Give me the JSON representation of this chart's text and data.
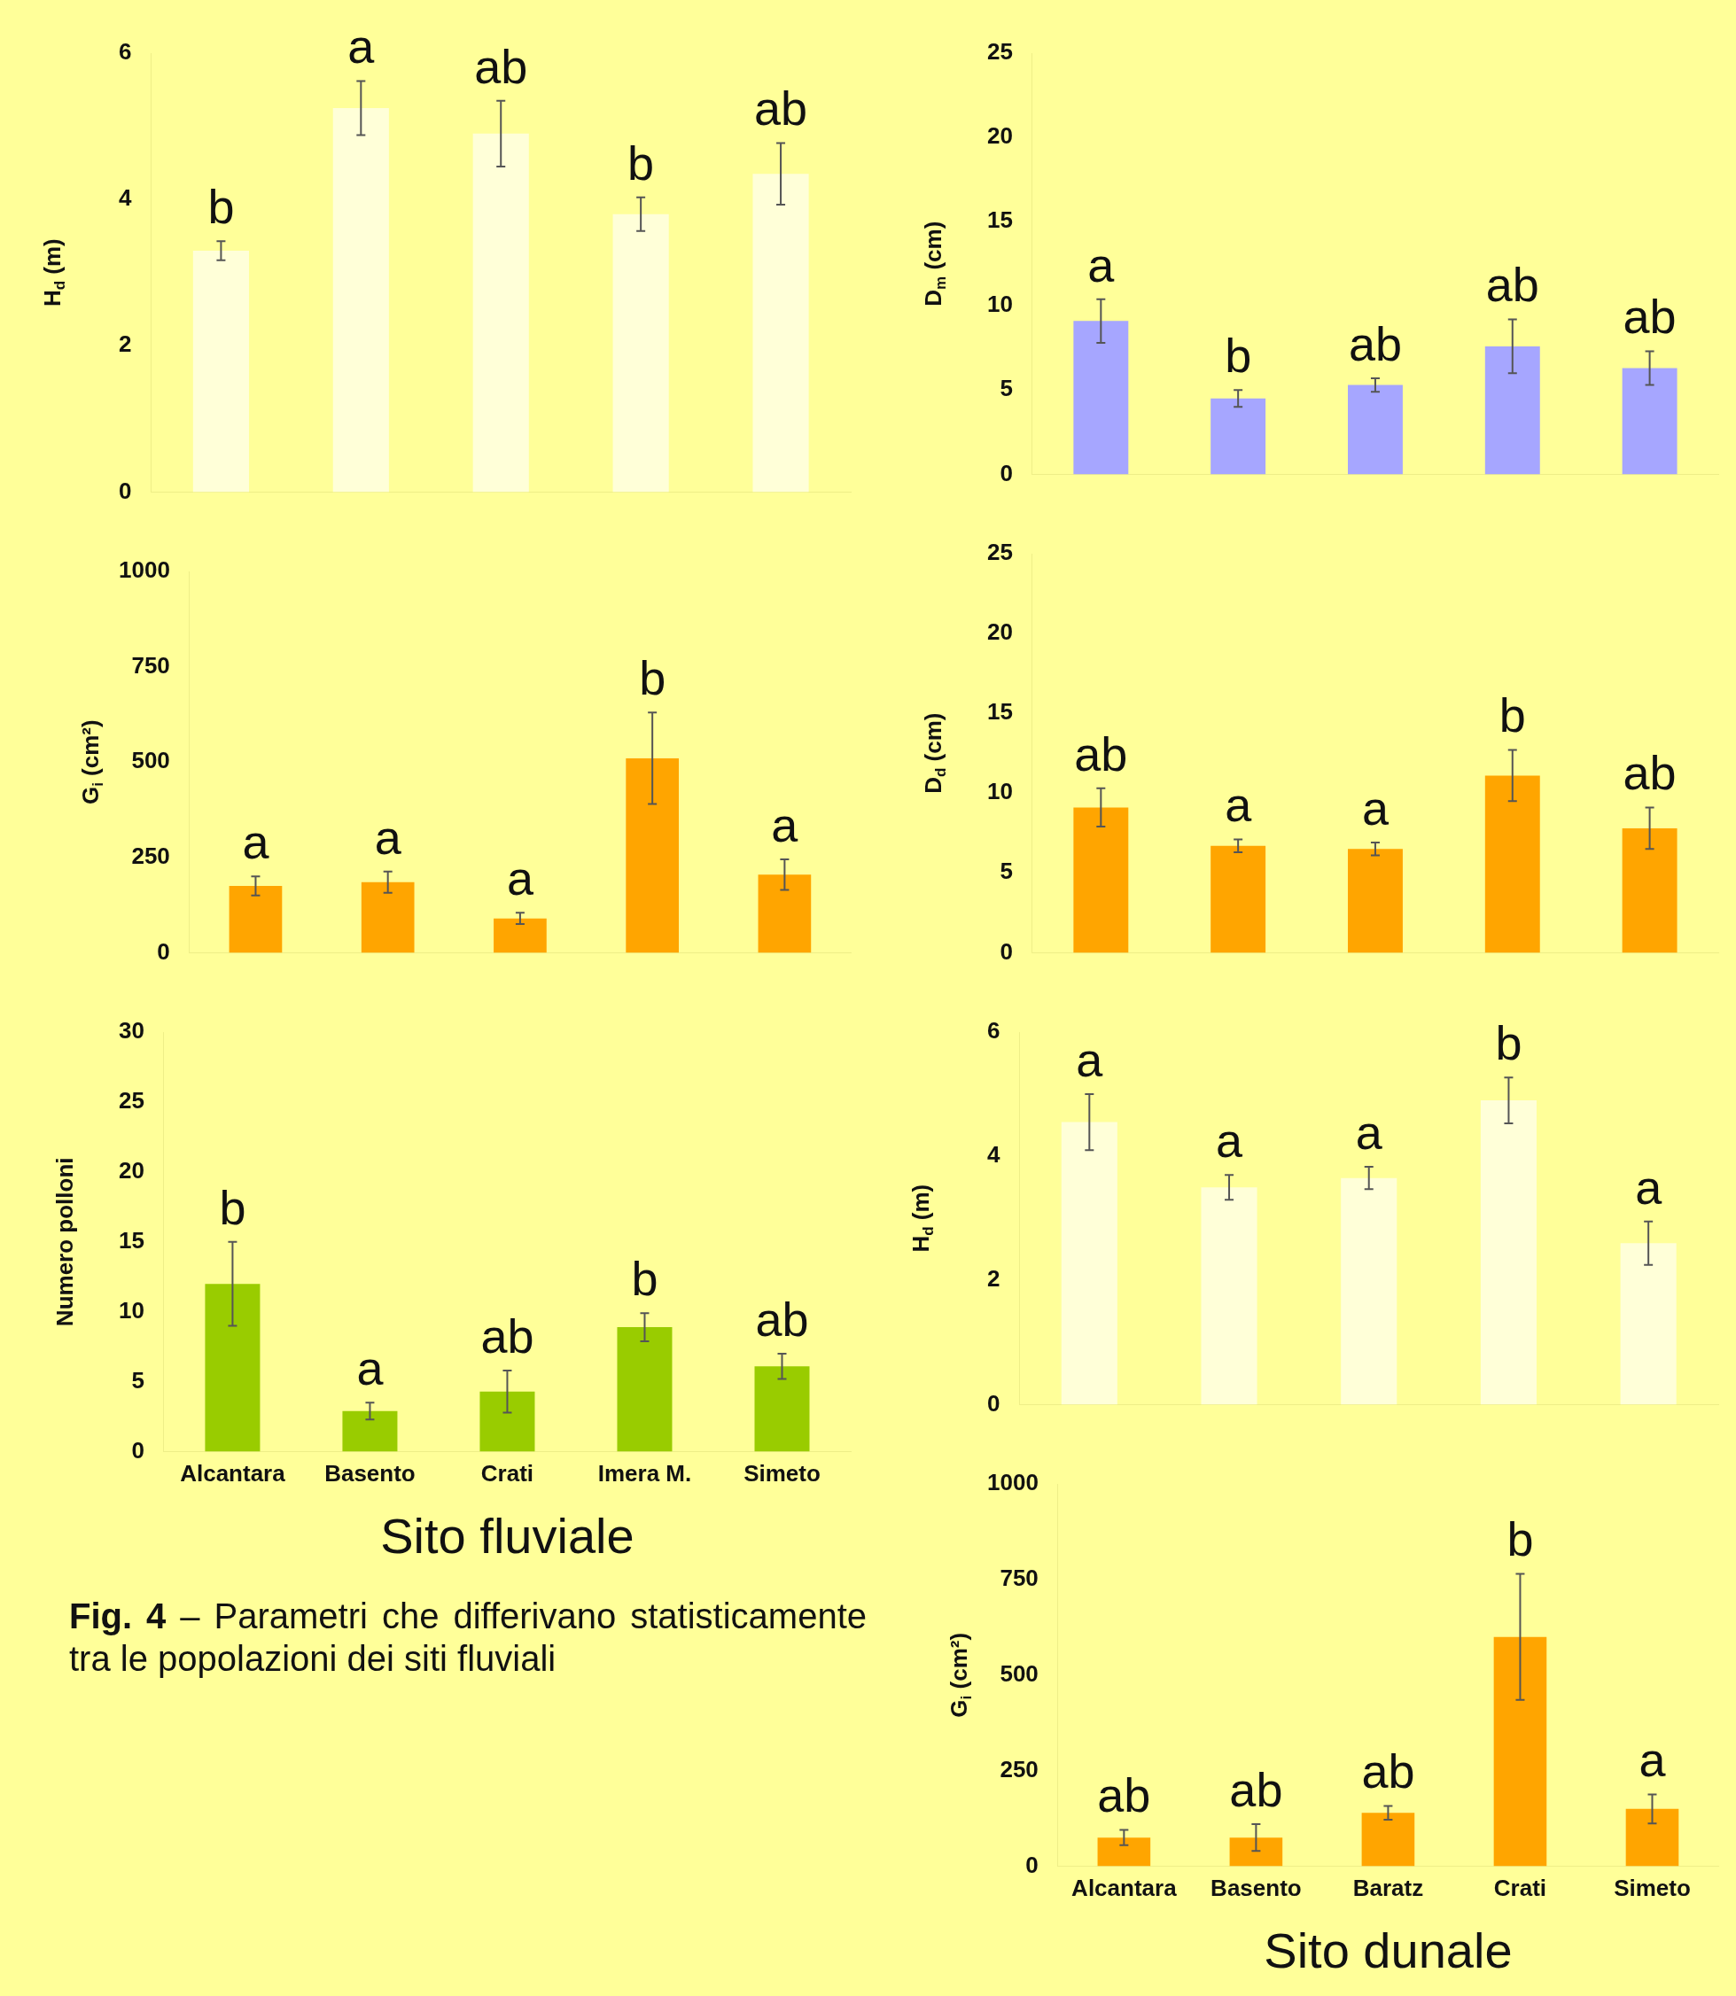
{
  "chart_data": [
    {
      "type": "bar",
      "ylabel": "H$_{d}$ (m)",
      "categories": [
        null,
        null,
        null,
        null,
        null
      ],
      "values": [
        3.3,
        5.25,
        4.9,
        3.8,
        4.35
      ],
      "errors": [
        0.13,
        0.37,
        0.45,
        0.23,
        0.42
      ],
      "color": "#ffffd8",
      "ylim": [
        0,
        6
      ],
      "yticks": [
        0,
        2,
        4,
        6
      ],
      "tick_labels": "y",
      "annotations": [
        "b",
        "a",
        "ab",
        "b",
        "ab"
      ]
    },
    {
      "type": "bar",
      "ylabel": "G$_{i}$ (cm²)",
      "categories": [
        null,
        null,
        null,
        null,
        null
      ],
      "values": [
        175,
        185,
        90,
        510,
        205
      ],
      "errors": [
        25,
        28,
        15,
        120,
        40
      ],
      "color": "#ffa500",
      "ylim": [
        0,
        1000
      ],
      "yticks": [
        0,
        250,
        500,
        750,
        1000
      ],
      "tick_labels": "y",
      "annotations": [
        "a",
        "a",
        "a",
        "b",
        "a"
      ]
    },
    {
      "type": "bar",
      "ylabel": "Numero polloni",
      "xlabel": "Sito fluviale",
      "categories": [
        "Alcantara",
        "Basento",
        "Crati",
        "Imera M.",
        "Simeto"
      ],
      "values": [
        12,
        2.9,
        4.3,
        8.9,
        6.1
      ],
      "errors": [
        3,
        0.6,
        1.5,
        1,
        0.9
      ],
      "color": "#99cc00",
      "ylim": [
        0,
        30
      ],
      "yticks": [
        0,
        5,
        10,
        15,
        20,
        25,
        30
      ],
      "annotations": [
        "b",
        "a",
        "ab",
        "b",
        "ab",
        "Fig. 4 – Parametri che differivano statisticamente tra le popolazioni dei siti fluviali"
      ]
    },
    {
      "type": "bar",
      "ylabel": "D$_{m}$ (cm)",
      "categories": [
        null,
        null,
        null,
        null,
        null
      ],
      "values": [
        9.1,
        4.5,
        5.3,
        7.6,
        6.3
      ],
      "errors": [
        1.3,
        0.5,
        0.4,
        1.6,
        1
      ],
      "color": "#a6a6ff",
      "ylim": [
        0,
        25
      ],
      "yticks": [
        0,
        5,
        10,
        15,
        20,
        25
      ],
      "tick_labels": "y",
      "annotations": [
        "a",
        "b",
        "ab",
        "ab",
        "ab"
      ]
    },
    {
      "type": "bar",
      "ylabel": "D$_{d}$ (cm)",
      "categories": [
        null,
        null,
        null,
        null,
        null
      ],
      "values": [
        9.1,
        6.7,
        6.5,
        11.1,
        7.8
      ],
      "errors": [
        1.2,
        0.4,
        0.4,
        1.6,
        1.3
      ],
      "color": "#ffa500",
      "ylim": [
        0,
        25
      ],
      "yticks": [
        0,
        5,
        10,
        15,
        20,
        25
      ],
      "tick_labels": "y",
      "annotations": [
        "ab",
        "a",
        "a",
        "b",
        "ab"
      ]
    },
    {
      "type": "bar",
      "ylabel": "H$_{d}$ (m)",
      "categories": [
        null,
        null,
        null,
        null,
        null
      ],
      "values": [
        4.55,
        3.5,
        3.65,
        4.9,
        2.6
      ],
      "errors": [
        0.45,
        0.2,
        0.18,
        0.37,
        0.35
      ],
      "color": "#ffffd8",
      "ylim": [
        0,
        6
      ],
      "yticks": [
        0,
        2,
        4,
        6
      ],
      "tick_labels": "y",
      "annotations": [
        "a",
        "a",
        "a",
        "b",
        "a"
      ]
    },
    {
      "type": "bar",
      "ylabel": "G$_{i}$ (cm²)",
      "xlabel": "Sito dunale",
      "categories": [
        "Alcantara",
        "Basento",
        "Baratz",
        "Crati",
        "Simeto"
      ],
      "values": [
        75,
        75,
        140,
        600,
        150
      ],
      "errors": [
        20,
        35,
        18,
        165,
        38
      ],
      "color": "#ffa500",
      "ylim": [
        0,
        1000
      ],
      "yticks": [
        0,
        250,
        500,
        750,
        1000
      ],
      "annotations": [
        "ab",
        "ab",
        "ab",
        "b",
        "a"
      ]
    }
  ]
}
